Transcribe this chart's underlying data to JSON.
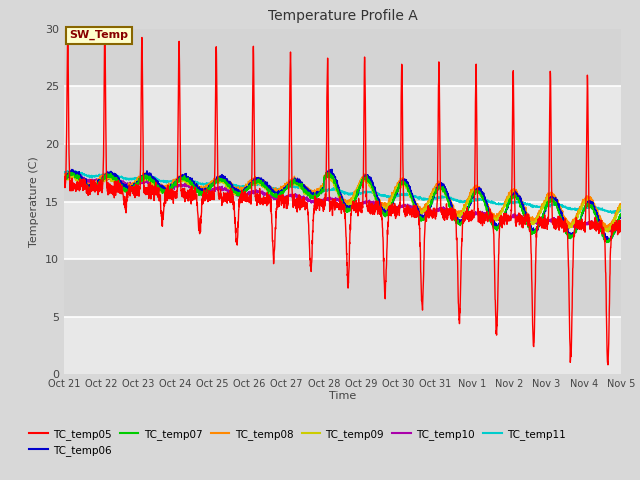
{
  "title": "Temperature Profile A",
  "xlabel": "Time",
  "ylabel": "Temperature (C)",
  "ylim": [
    0,
    30
  ],
  "fig_width": 6.4,
  "fig_height": 4.8,
  "dpi": 100,
  "outer_bg": "#d8d8d8",
  "plot_bg_light": "#e8e8e8",
  "plot_bg_dark": "#d0d0d0",
  "grid_color": "white",
  "series_colors": {
    "TC_temp05": "#ff0000",
    "TC_temp06": "#0000cc",
    "TC_temp07": "#00cc00",
    "TC_temp08": "#ff8800",
    "TC_temp09": "#cccc00",
    "TC_temp10": "#aa00aa",
    "TC_temp11": "#00cccc"
  },
  "annotation_text": "SW_Temp",
  "annotation_bbox_facecolor": "#ffffcc",
  "annotation_bbox_edgecolor": "#886600",
  "x_tick_labels": [
    "Oct 21",
    "Oct 22",
    "Oct 23",
    "Oct 24",
    "Oct 25",
    "Oct 26",
    "Oct 27",
    "Oct 28",
    "Oct 29",
    "Oct 30",
    "Oct 31",
    "Nov 1",
    "Nov 2",
    "Nov 3",
    "Nov 4",
    "Nov 5"
  ],
  "num_points": 3000
}
